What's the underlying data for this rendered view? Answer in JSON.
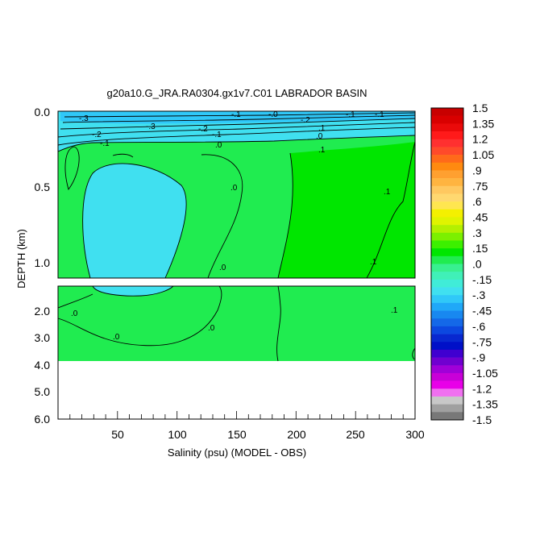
{
  "chart_data": {
    "type": "heatmap",
    "title": "g20a10.G_JRA.RA0304.gx1v7.C01 LABRADOR BASIN",
    "xlabel": "Salinity (psu) (MODEL - OBS)",
    "ylabel": "DEPTH (km)",
    "xlim": [
      0,
      300
    ],
    "x_ticks": [
      "50",
      "100",
      "150",
      "200",
      "250",
      "300"
    ],
    "y_ticks_top": [
      "0.0",
      "0.5",
      "1.0"
    ],
    "y_ticks_bottom": [
      "2.0",
      "3.0",
      "4.0",
      "5.0",
      "6.0"
    ],
    "upper_panel_ylim": [
      0,
      1.1
    ],
    "lower_panel_ylim": [
      1.1,
      6.0
    ],
    "data_bottom_depth": 3.9,
    "colorbar": {
      "labels": [
        "1.5",
        "1.35",
        "1.2",
        "1.05",
        ".9",
        ".75",
        ".6",
        ".45",
        ".3",
        ".15",
        ".0",
        "-.15",
        "-.3",
        "-.45",
        "-.6",
        "-.75",
        "-.9",
        "-1.05",
        "-1.2",
        "-1.35",
        "-1.5"
      ],
      "bands": [
        "#c80000",
        "#d90000",
        "#ea0a0a",
        "#ff1a1a",
        "#ff3030",
        "#ff4a2a",
        "#ff6a1a",
        "#ff8a10",
        "#ffa030",
        "#ffb440",
        "#ffc860",
        "#ffd870",
        "#ffe650",
        "#f4f000",
        "#e0f400",
        "#b4f000",
        "#7cf000",
        "#3cf000",
        "#00e600",
        "#20ec50",
        "#38f090",
        "#40f0b8",
        "#40ecd8",
        "#40e0f0",
        "#30c8f8",
        "#20a8f8",
        "#1888f0",
        "#1468e8",
        "#0c48e0",
        "#0828d0",
        "#0010c8",
        "#4000d0",
        "#7000d0",
        "#a000d8",
        "#c800d8",
        "#e800e8",
        "#f070f0",
        "#c8c8c8",
        "#a0a0a0",
        "#787878"
      ]
    },
    "contour_labels": [
      ".0",
      ".0",
      ".0",
      ".0",
      ".1",
      ".1",
      ".1",
      ".1",
      "-.1",
      "-.1",
      "-.2",
      "-.2",
      "-.2",
      "-.3",
      "-.3",
      "-.1",
      "-.1",
      "-.1",
      "-.0",
      ".0",
      ".1",
      "-.2"
    ]
  }
}
